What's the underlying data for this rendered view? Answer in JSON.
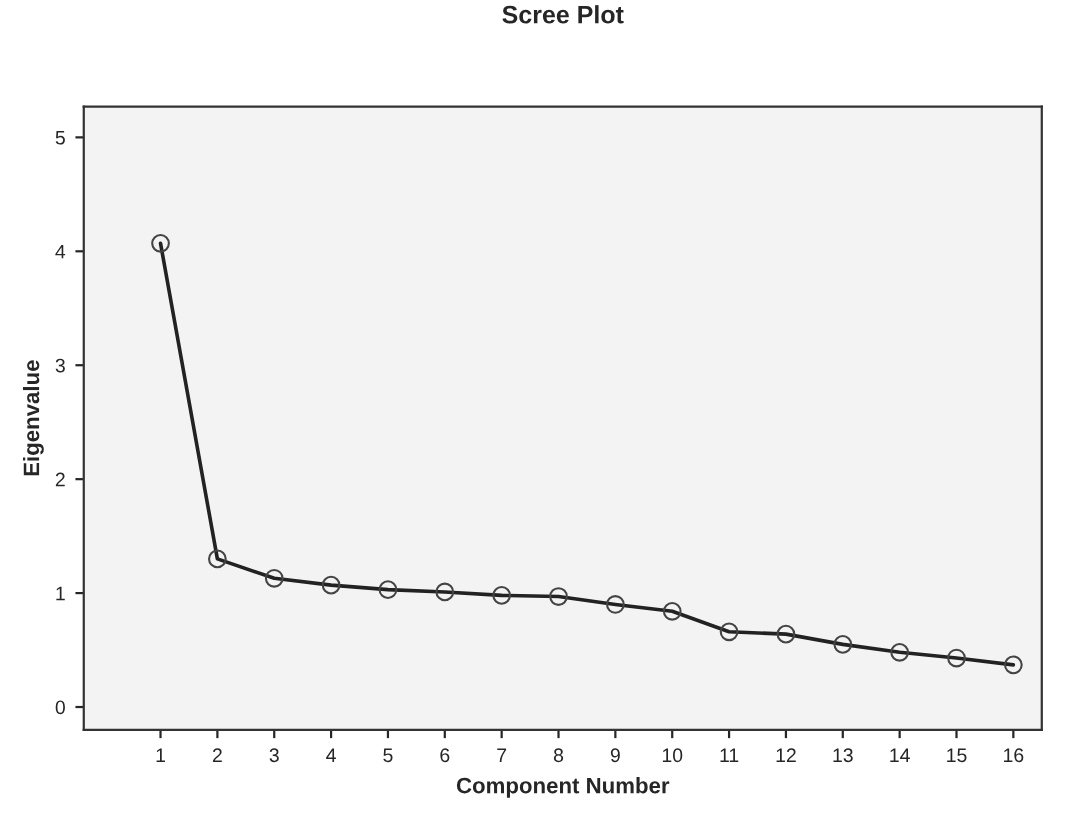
{
  "chart_data": {
    "type": "line",
    "title": "Scree Plot",
    "xlabel": "Component Number",
    "ylabel": "Eigenvalue",
    "categories": [
      "1",
      "2",
      "3",
      "4",
      "5",
      "6",
      "7",
      "8",
      "9",
      "10",
      "11",
      "12",
      "13",
      "14",
      "15",
      "16"
    ],
    "series": [
      {
        "color": "#222222",
        "values": [
          4.07,
          1.3,
          1.13,
          1.07,
          1.03,
          1.01,
          0.98,
          0.97,
          0.9,
          0.84,
          0.66,
          0.64,
          0.55,
          0.48,
          0.43,
          0.37
        ]
      }
    ],
    "ylim": [
      -0.2,
      5.27
    ],
    "yticks": [
      0,
      1,
      2,
      3,
      4,
      5
    ],
    "grid": false,
    "legend": false,
    "marker": "circle",
    "line_style": "solid"
  }
}
